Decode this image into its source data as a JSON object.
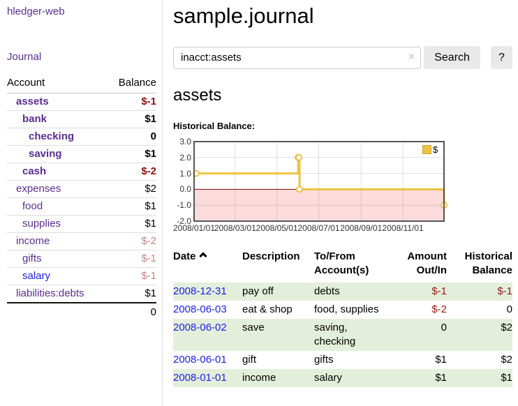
{
  "colors": {
    "accent_purple": "#5b2d8e",
    "link_blue": "#1d1de0",
    "negative_strong": "#8b1111",
    "negative_faded": "#c28585",
    "register_negative": "#8f1c1c",
    "row_green": "#e3efdb",
    "chart_line": "#edc240",
    "chart_negative_bg": "#fbdbdb",
    "chart_zero_line": "#8b0000",
    "chart_border": "#545454",
    "chart_grid": "#e6e6e6"
  },
  "sidebar": {
    "brand": "hledger-web",
    "nav_journal": "Journal",
    "accounts": {
      "col_account": "Account",
      "col_balance": "Balance",
      "rows": [
        {
          "name": "assets",
          "balance": "$-1",
          "indent": 1,
          "bold": true,
          "name_style": "purple",
          "balance_style": "neg-strong"
        },
        {
          "name": "bank",
          "balance": "$1",
          "indent": 2,
          "bold": true,
          "name_style": "purple",
          "balance_style": ""
        },
        {
          "name": "checking",
          "balance": "0",
          "indent": 3,
          "bold": true,
          "name_style": "purple",
          "balance_style": ""
        },
        {
          "name": "saving",
          "balance": "$1",
          "indent": 3,
          "bold": true,
          "name_style": "purple",
          "balance_style": ""
        },
        {
          "name": "cash",
          "balance": "$-2",
          "indent": 2,
          "bold": true,
          "name_style": "purple",
          "balance_style": "neg-strong"
        },
        {
          "name": "expenses",
          "balance": "$2",
          "indent": 1,
          "bold": false,
          "name_style": "purple",
          "balance_style": ""
        },
        {
          "name": "food",
          "balance": "$1",
          "indent": 2,
          "bold": false,
          "name_style": "purple",
          "balance_style": ""
        },
        {
          "name": "supplies",
          "balance": "$1",
          "indent": 2,
          "bold": false,
          "name_style": "purple",
          "balance_style": ""
        },
        {
          "name": "income",
          "balance": "$-2",
          "indent": 1,
          "bold": false,
          "name_style": "purple",
          "balance_style": "neg-faded"
        },
        {
          "name": "gifts",
          "balance": "$-1",
          "indent": 2,
          "bold": false,
          "name_style": "purple",
          "balance_style": "neg-faded"
        },
        {
          "name": "salary",
          "balance": "$-1",
          "indent": 2,
          "bold": false,
          "name_style": "blue",
          "balance_style": "neg-faded"
        },
        {
          "name": "liabilities:debts",
          "balance": "$1",
          "indent": 1,
          "bold": false,
          "name_style": "purple",
          "balance_style": ""
        }
      ],
      "total": "0"
    }
  },
  "main": {
    "title": "sample.journal",
    "search": {
      "value": "inacct:assets",
      "clear_icon": "×",
      "search_label": "Search",
      "help_label": "?"
    },
    "heading": "assets",
    "chart_title": "Historical Balance:"
  },
  "chart_data": {
    "type": "line",
    "title": "Historical Balance",
    "step": true,
    "series": [
      {
        "name": "$",
        "points": [
          {
            "date": "2008-01-01",
            "day": 0,
            "value": 1
          },
          {
            "date": "2008-06-01",
            "day": 152,
            "value": 2
          },
          {
            "date": "2008-06-02",
            "day": 153,
            "value": 2
          },
          {
            "date": "2008-06-03",
            "day": 154,
            "value": 0
          },
          {
            "date": "2008-12-31",
            "day": 365,
            "value": -1
          }
        ]
      }
    ],
    "x_domain_days": [
      0,
      365
    ],
    "x_ticks": [
      {
        "label": "2008/01/01",
        "day": 0
      },
      {
        "label": "2008/03/01",
        "day": 60
      },
      {
        "label": "2008/05/01",
        "day": 121
      },
      {
        "label": "2008/07/01",
        "day": 182
      },
      {
        "label": "2008/09/01",
        "day": 244
      },
      {
        "label": "2008/11/01",
        "day": 305
      }
    ],
    "ylim": [
      -2,
      3
    ],
    "y_ticks": [
      {
        "label": "3.0",
        "value": 3
      },
      {
        "label": "2.0",
        "value": 2
      },
      {
        "label": "1.0",
        "value": 1
      },
      {
        "label": "0.0",
        "value": 0
      },
      {
        "label": "-1.0",
        "value": -1
      },
      {
        "label": "-2.0",
        "value": -2
      }
    ],
    "legend": {
      "label": "$",
      "position": "top-right"
    },
    "negative_region_shaded": true,
    "grid": true
  },
  "register": {
    "headers": {
      "date": "Date",
      "description": "Description",
      "account1": "To/From",
      "account2": "Account(s)",
      "amount1": "Amount",
      "amount2": "Out/In",
      "balance1": "Historical",
      "balance2": "Balance"
    },
    "rows": [
      {
        "date": "2008-12-31",
        "description": "pay off",
        "accounts": [
          "debts"
        ],
        "amount": "$-1",
        "amount_negative": true,
        "balance": "$-1",
        "balance_negative": true
      },
      {
        "date": "2008-06-03",
        "description": "eat & shop",
        "accounts": [
          "food, supplies"
        ],
        "amount": "$-2",
        "amount_negative": true,
        "balance": "0",
        "balance_negative": false
      },
      {
        "date": "2008-06-02",
        "description": "save",
        "accounts": [
          "saving,",
          "checking"
        ],
        "amount": "0",
        "amount_negative": false,
        "balance": "$2",
        "balance_negative": false
      },
      {
        "date": "2008-06-01",
        "description": "gift",
        "accounts": [
          "gifts"
        ],
        "amount": "$1",
        "amount_negative": false,
        "balance": "$2",
        "balance_negative": false
      },
      {
        "date": "2008-01-01",
        "description": "income",
        "accounts": [
          "salary"
        ],
        "amount": "$1",
        "amount_negative": false,
        "balance": "$1",
        "balance_negative": false
      }
    ]
  }
}
